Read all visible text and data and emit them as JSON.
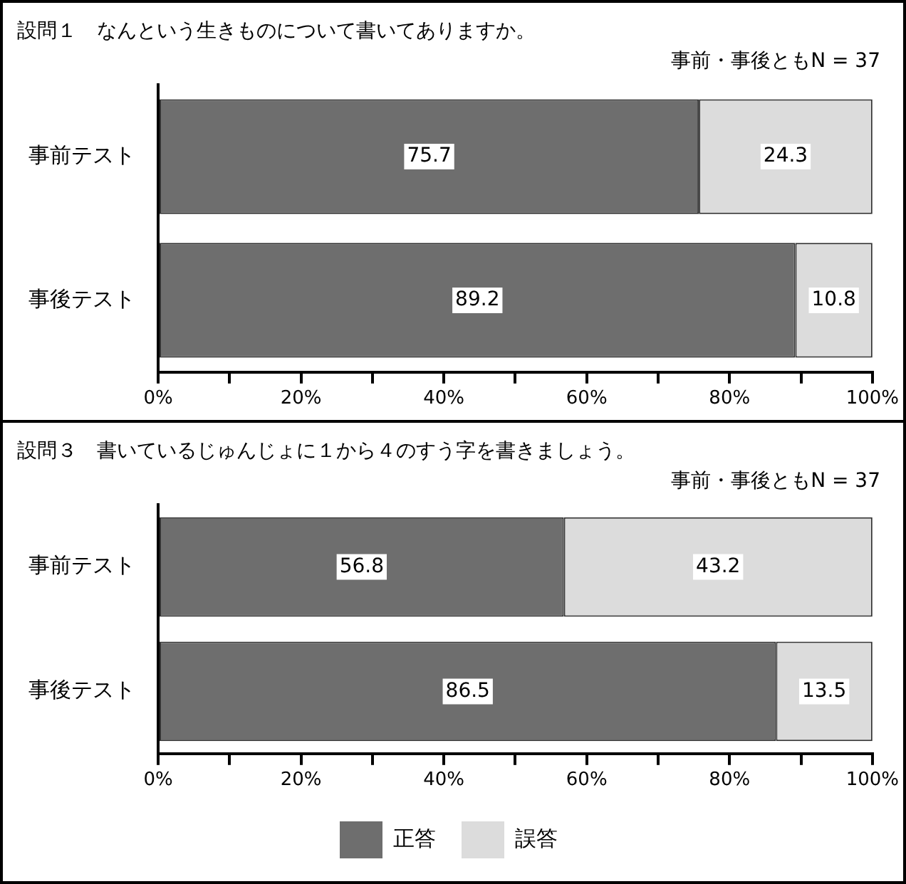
{
  "chart_data": [
    {
      "type": "bar",
      "orientation": "horizontal",
      "stacked": true,
      "title": "設問１　なんという生きものについて書いてありますか。",
      "subtitle": "事前・事後ともN = 37",
      "categories": [
        "事前テスト",
        "事後テスト"
      ],
      "series": [
        {
          "color": "#6e6e6e",
          "values": [
            75.7,
            89.2
          ]
        },
        {
          "color": "#dcdcdc",
          "values": [
            24.3,
            10.8
          ]
        }
      ],
      "xlim": [
        0,
        100
      ],
      "xticks": [
        {
          "value": 0,
          "label": "0%"
        },
        {
          "value": 10,
          "label": null
        },
        {
          "value": 20,
          "label": "20%"
        },
        {
          "value": 30,
          "label": null
        },
        {
          "value": 40,
          "label": "40%"
        },
        {
          "value": 50,
          "label": null
        },
        {
          "value": 60,
          "label": "60%"
        },
        {
          "value": 70,
          "label": null
        },
        {
          "value": 80,
          "label": "80%"
        },
        {
          "value": 90,
          "label": null
        },
        {
          "value": 100,
          "label": "100%"
        }
      ],
      "data_labels": true,
      "legend": false,
      "grid": false
    },
    {
      "type": "bar",
      "orientation": "horizontal",
      "stacked": true,
      "title": "設問３　書いているじゅんじょに１から４のすう字を書きましょう。",
      "subtitle": "事前・事後ともN = 37",
      "categories": [
        "事前テスト",
        "事後テスト"
      ],
      "series": [
        {
          "name": "正答",
          "color": "#6e6e6e",
          "values": [
            56.8,
            86.5
          ]
        },
        {
          "name": "誤答",
          "color": "#dcdcdc",
          "values": [
            43.2,
            13.5
          ]
        }
      ],
      "xlim": [
        0,
        100
      ],
      "xticks": [
        {
          "value": 0,
          "label": "0%"
        },
        {
          "value": 10,
          "label": null
        },
        {
          "value": 20,
          "label": "20%"
        },
        {
          "value": 30,
          "label": null
        },
        {
          "value": 40,
          "label": "40%"
        },
        {
          "value": 50,
          "label": null
        },
        {
          "value": 60,
          "label": "60%"
        },
        {
          "value": 70,
          "label": null
        },
        {
          "value": 80,
          "label": "80%"
        },
        {
          "value": 90,
          "label": null
        },
        {
          "value": 100,
          "label": "100%"
        }
      ],
      "data_labels": true,
      "legend": "bottom",
      "grid": false
    }
  ]
}
